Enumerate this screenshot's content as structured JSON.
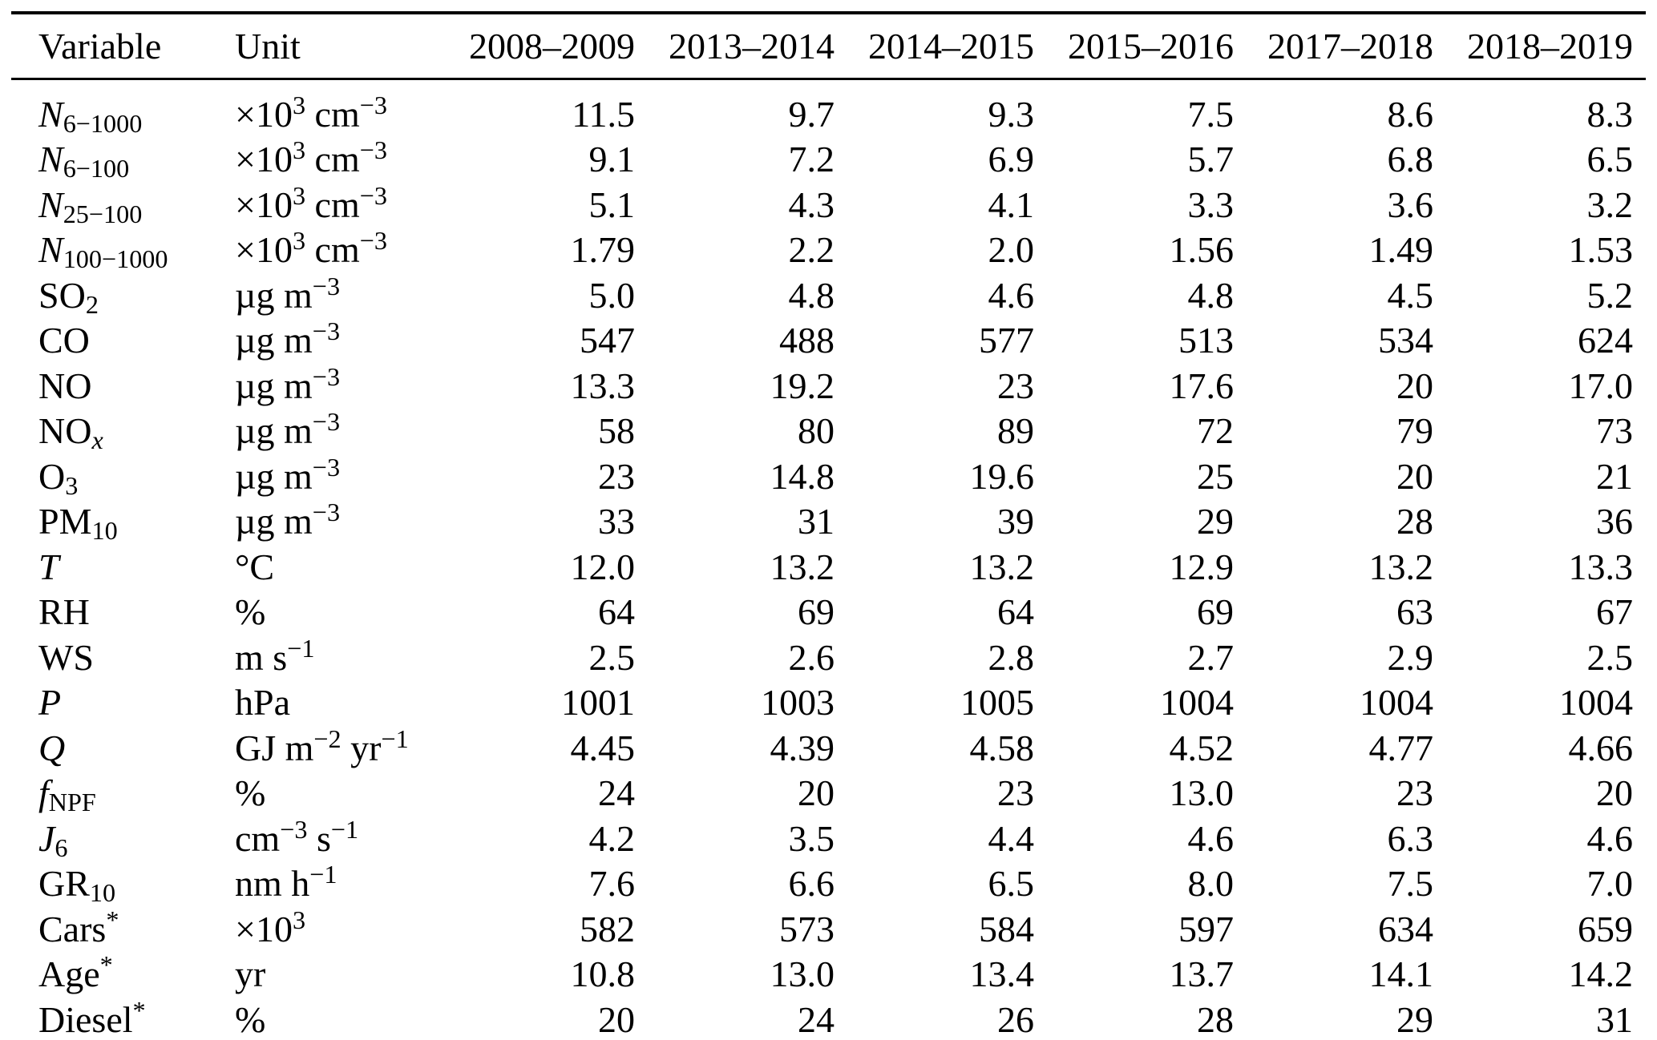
{
  "page": {
    "background": "#ffffff",
    "text_color": "#000000",
    "rule_color": "#000000"
  },
  "table": {
    "columns": [
      "Variable",
      "Unit",
      "2008–2009",
      "2013–2014",
      "2014–2015",
      "2015–2016",
      "2017–2018",
      "2018–2019"
    ],
    "rows": [
      {
        "variable": [
          {
            "t": "i",
            "v": "N"
          },
          {
            "t": "sub",
            "v": "6−1000"
          }
        ],
        "unit": [
          {
            "t": "n",
            "v": "×10"
          },
          {
            "t": "sup",
            "v": "3"
          },
          {
            "t": "n",
            "v": " cm"
          },
          {
            "t": "sup",
            "v": "−3"
          }
        ],
        "values": [
          "11.5",
          "9.7",
          "9.3",
          "7.5",
          "8.6",
          "8.3"
        ]
      },
      {
        "variable": [
          {
            "t": "i",
            "v": "N"
          },
          {
            "t": "sub",
            "v": "6−100"
          }
        ],
        "unit": [
          {
            "t": "n",
            "v": "×10"
          },
          {
            "t": "sup",
            "v": "3"
          },
          {
            "t": "n",
            "v": " cm"
          },
          {
            "t": "sup",
            "v": "−3"
          }
        ],
        "values": [
          "9.1",
          "7.2",
          "6.9",
          "5.7",
          "6.8",
          "6.5"
        ]
      },
      {
        "variable": [
          {
            "t": "i",
            "v": "N"
          },
          {
            "t": "sub",
            "v": "25−100"
          }
        ],
        "unit": [
          {
            "t": "n",
            "v": "×10"
          },
          {
            "t": "sup",
            "v": "3"
          },
          {
            "t": "n",
            "v": " cm"
          },
          {
            "t": "sup",
            "v": "−3"
          }
        ],
        "values": [
          "5.1",
          "4.3",
          "4.1",
          "3.3",
          "3.6",
          "3.2"
        ]
      },
      {
        "variable": [
          {
            "t": "i",
            "v": "N"
          },
          {
            "t": "sub",
            "v": "100−1000"
          }
        ],
        "unit": [
          {
            "t": "n",
            "v": "×10"
          },
          {
            "t": "sup",
            "v": "3"
          },
          {
            "t": "n",
            "v": " cm"
          },
          {
            "t": "sup",
            "v": "−3"
          }
        ],
        "values": [
          "1.79",
          "2.2",
          "2.0",
          "1.56",
          "1.49",
          "1.53"
        ]
      },
      {
        "variable": [
          {
            "t": "n",
            "v": "SO"
          },
          {
            "t": "sub",
            "v": "2"
          }
        ],
        "unit": [
          {
            "t": "n",
            "v": "µg m"
          },
          {
            "t": "sup",
            "v": "−3"
          }
        ],
        "values": [
          "5.0",
          "4.8",
          "4.6",
          "4.8",
          "4.5",
          "5.2"
        ]
      },
      {
        "variable": [
          {
            "t": "n",
            "v": "CO"
          }
        ],
        "unit": [
          {
            "t": "n",
            "v": "µg m"
          },
          {
            "t": "sup",
            "v": "−3"
          }
        ],
        "values": [
          "547",
          "488",
          "577",
          "513",
          "534",
          "624"
        ]
      },
      {
        "variable": [
          {
            "t": "n",
            "v": "NO"
          }
        ],
        "unit": [
          {
            "t": "n",
            "v": "µg m"
          },
          {
            "t": "sup",
            "v": "−3"
          }
        ],
        "values": [
          "13.3",
          "19.2",
          "23",
          "17.6",
          "20",
          "17.0"
        ]
      },
      {
        "variable": [
          {
            "t": "n",
            "v": "NO"
          },
          {
            "t": "isub",
            "v": "x"
          }
        ],
        "unit": [
          {
            "t": "n",
            "v": "µg m"
          },
          {
            "t": "sup",
            "v": "−3"
          }
        ],
        "values": [
          "58",
          "80",
          "89",
          "72",
          "79",
          "73"
        ]
      },
      {
        "variable": [
          {
            "t": "n",
            "v": "O"
          },
          {
            "t": "sub",
            "v": "3"
          }
        ],
        "unit": [
          {
            "t": "n",
            "v": "µg m"
          },
          {
            "t": "sup",
            "v": "−3"
          }
        ],
        "values": [
          "23",
          "14.8",
          "19.6",
          "25",
          "20",
          "21"
        ]
      },
      {
        "variable": [
          {
            "t": "n",
            "v": "PM"
          },
          {
            "t": "sub",
            "v": "10"
          }
        ],
        "unit": [
          {
            "t": "n",
            "v": "µg m"
          },
          {
            "t": "sup",
            "v": "−3"
          }
        ],
        "values": [
          "33",
          "31",
          "39",
          "29",
          "28",
          "36"
        ]
      },
      {
        "variable": [
          {
            "t": "i",
            "v": "T"
          }
        ],
        "unit": [
          {
            "t": "n",
            "v": "°C"
          }
        ],
        "values": [
          "12.0",
          "13.2",
          "13.2",
          "12.9",
          "13.2",
          "13.3"
        ]
      },
      {
        "variable": [
          {
            "t": "n",
            "v": "RH"
          }
        ],
        "unit": [
          {
            "t": "n",
            "v": "%"
          }
        ],
        "values": [
          "64",
          "69",
          "64",
          "69",
          "63",
          "67"
        ]
      },
      {
        "variable": [
          {
            "t": "n",
            "v": "WS"
          }
        ],
        "unit": [
          {
            "t": "n",
            "v": "m s"
          },
          {
            "t": "sup",
            "v": "−1"
          }
        ],
        "values": [
          "2.5",
          "2.6",
          "2.8",
          "2.7",
          "2.9",
          "2.5"
        ]
      },
      {
        "variable": [
          {
            "t": "i",
            "v": "P"
          }
        ],
        "unit": [
          {
            "t": "n",
            "v": "hPa"
          }
        ],
        "values": [
          "1001",
          "1003",
          "1005",
          "1004",
          "1004",
          "1004"
        ]
      },
      {
        "variable": [
          {
            "t": "i",
            "v": "Q"
          }
        ],
        "unit": [
          {
            "t": "n",
            "v": "GJ m"
          },
          {
            "t": "sup",
            "v": "−2"
          },
          {
            "t": "n",
            "v": " yr"
          },
          {
            "t": "sup",
            "v": "−1"
          }
        ],
        "values": [
          "4.45",
          "4.39",
          "4.58",
          "4.52",
          "4.77",
          "4.66"
        ]
      },
      {
        "variable": [
          {
            "t": "i",
            "v": "f"
          },
          {
            "t": "sub",
            "v": "NPF"
          }
        ],
        "unit": [
          {
            "t": "n",
            "v": "%"
          }
        ],
        "values": [
          "24",
          "20",
          "23",
          "13.0",
          "23",
          "20"
        ]
      },
      {
        "variable": [
          {
            "t": "i",
            "v": "J"
          },
          {
            "t": "sub",
            "v": "6"
          }
        ],
        "unit": [
          {
            "t": "n",
            "v": "cm"
          },
          {
            "t": "sup",
            "v": "−3"
          },
          {
            "t": "n",
            "v": " s"
          },
          {
            "t": "sup",
            "v": "−1"
          }
        ],
        "values": [
          "4.2",
          "3.5",
          "4.4",
          "4.6",
          "6.3",
          "4.6"
        ]
      },
      {
        "variable": [
          {
            "t": "n",
            "v": "GR"
          },
          {
            "t": "sub",
            "v": "10"
          }
        ],
        "unit": [
          {
            "t": "n",
            "v": "nm h"
          },
          {
            "t": "sup",
            "v": "−1"
          }
        ],
        "values": [
          "7.6",
          "6.6",
          "6.5",
          "8.0",
          "7.5",
          "7.0"
        ]
      },
      {
        "variable": [
          {
            "t": "n",
            "v": "Cars"
          },
          {
            "t": "sup",
            "v": "*"
          }
        ],
        "unit": [
          {
            "t": "n",
            "v": "×10"
          },
          {
            "t": "sup",
            "v": "3"
          }
        ],
        "values": [
          "582",
          "573",
          "584",
          "597",
          "634",
          "659"
        ]
      },
      {
        "variable": [
          {
            "t": "n",
            "v": "Age"
          },
          {
            "t": "sup",
            "v": "*"
          }
        ],
        "unit": [
          {
            "t": "n",
            "v": "yr"
          }
        ],
        "values": [
          "10.8",
          "13.0",
          "13.4",
          "13.7",
          "14.1",
          "14.2"
        ]
      },
      {
        "variable": [
          {
            "t": "n",
            "v": "Diesel"
          },
          {
            "t": "sup",
            "v": "*"
          }
        ],
        "unit": [
          {
            "t": "n",
            "v": "%"
          }
        ],
        "values": [
          "20",
          "24",
          "26",
          "28",
          "29",
          "31"
        ]
      }
    ]
  }
}
